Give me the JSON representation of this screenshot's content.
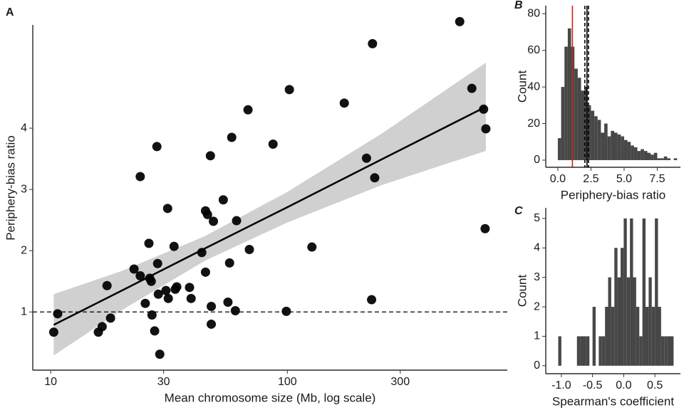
{
  "chart_data": [
    {
      "type": "scatter",
      "panel_label": "A",
      "xlabel": "Mean chromosome size (Mb, log scale)",
      "ylabel": "Periphery-bias ratio",
      "log_x": true,
      "xlim": [
        8.4,
        850
      ],
      "xticks": [
        10,
        30,
        100,
        300
      ],
      "ylim": [
        0.05,
        6.0
      ],
      "yticks": [
        1,
        2,
        3,
        4
      ],
      "color": "#000000",
      "hline": 1,
      "points": {
        "x": [
          10.3,
          10.7,
          15.9,
          16.5,
          17.3,
          17.9,
          22.5,
          23.9,
          23.9,
          25.1,
          26.0,
          26.2,
          26.6,
          26.8,
          27.5,
          28.1,
          28.3,
          28.5,
          28.9,
          30.7,
          31.2,
          31.4,
          33.2,
          33.6,
          34.1,
          38.6,
          39.2,
          43.5,
          45.1,
          45.1,
          46.0,
          47.7,
          47.3,
          47.7,
          48.7,
          53.6,
          56.1,
          57.0,
          58.2,
          60.3,
          61.0,
          68.2,
          69.1,
          87.0,
          99.0,
          102,
          127,
          174,
          216,
          227,
          229,
          234,
          535,
          602,
          675,
          690,
          685
        ],
        "y": [
          0.67,
          0.97,
          0.67,
          0.76,
          1.43,
          0.9,
          1.7,
          1.59,
          3.21,
          1.14,
          2.12,
          1.55,
          1.5,
          0.95,
          0.69,
          3.7,
          1.79,
          1.29,
          0.31,
          1.35,
          2.69,
          1.22,
          2.07,
          1.37,
          1.41,
          1.4,
          1.22,
          1.97,
          1.65,
          2.65,
          2.59,
          1.09,
          3.55,
          0.8,
          2.48,
          2.83,
          1.16,
          1.8,
          3.85,
          1.02,
          2.49,
          4.3,
          2.02,
          3.74,
          1.01,
          4.63,
          2.06,
          4.41,
          3.51,
          1.2,
          5.38,
          3.19,
          5.74,
          4.65,
          4.31,
          3.99,
          2.36
        ]
      },
      "fit": {
        "x": [
          10.3,
          20,
          45,
          100,
          250,
          690
        ],
        "y": [
          0.79,
          1.35,
          2.04,
          2.71,
          3.49,
          4.35
        ],
        "lower": [
          0.29,
          1.03,
          1.84,
          2.46,
          3.07,
          3.63
        ],
        "upper": [
          1.29,
          1.67,
          2.24,
          2.96,
          3.91,
          5.07
        ],
        "band_color": "#d0d0d0"
      }
    },
    {
      "type": "histogram",
      "panel_label": "B",
      "xlabel": "Periphery-bias ratio",
      "ylabel": "Count",
      "xlim": [
        -0.91,
        9.25
      ],
      "xticks": [
        {
          "value": 0,
          "label": "0.0"
        },
        2.5,
        {
          "value": 5,
          "label": "5.0"
        },
        7.5
      ],
      "ylim": [
        -3.9,
        84.4
      ],
      "yticks": [
        0,
        20,
        40,
        60,
        80
      ],
      "color": "#474747",
      "bins": [
        0,
        0.25,
        0.5,
        0.75,
        1,
        1.25,
        1.5,
        1.75,
        2,
        2.25,
        2.5,
        2.75,
        3,
        3.25,
        3.5,
        3.75,
        4,
        4.25,
        4.5,
        4.75,
        5,
        5.25,
        5.5,
        5.75,
        6,
        6.25,
        6.5,
        6.75,
        7,
        7.25,
        7.5,
        7.75,
        8,
        8.25,
        8.5,
        8.75,
        9
      ],
      "values": [
        12,
        40,
        62,
        72,
        62,
        50,
        45,
        38,
        40,
        30,
        27,
        24,
        22,
        15,
        20,
        13,
        16,
        15,
        14,
        13,
        11,
        10,
        8,
        7,
        5,
        6,
        5,
        4,
        3,
        4,
        1,
        1,
        2,
        1,
        0,
        1
      ],
      "vlines": [
        {
          "value": 1.1,
          "color": "#cc2222",
          "style": "solid"
        },
        {
          "value": 2.04,
          "color": "#000000",
          "style": "dashed"
        },
        {
          "value": 2.2,
          "color": "#000000",
          "style": "solid"
        },
        {
          "value": 2.31,
          "color": "#000000",
          "style": "dashed"
        }
      ]
    },
    {
      "type": "histogram",
      "panel_label": "C",
      "xlabel": "Spearman's coefficient",
      "ylabel": "Count",
      "xlim": [
        -1.25,
        0.91
      ],
      "xticks": [
        {
          "value": -1,
          "label": "-1.0"
        },
        -0.5,
        {
          "value": 0,
          "label": "0.0"
        },
        0.5
      ],
      "ylim": [
        -0.27,
        5.36
      ],
      "yticks": [
        0,
        1,
        2,
        3,
        4,
        5
      ],
      "color": "#474747",
      "bins": [
        -1.05,
        -1.0,
        -0.95,
        -0.9,
        -0.85,
        -0.8,
        -0.75,
        -0.7,
        -0.65,
        -0.6,
        -0.55,
        -0.5,
        -0.45,
        -0.4,
        -0.35,
        -0.3,
        -0.25,
        -0.2,
        -0.15,
        -0.1,
        -0.05,
        0,
        0.05,
        0.1,
        0.15,
        0.2,
        0.25,
        0.3,
        0.35,
        0.4,
        0.45,
        0.5,
        0.55,
        0.6,
        0.65,
        0.7,
        0.75,
        0.8
      ],
      "values": [
        1,
        0,
        0,
        0,
        0,
        0,
        1,
        1,
        1,
        1,
        0,
        2,
        0,
        1,
        1,
        2,
        3,
        2,
        4,
        3,
        4,
        5,
        3,
        5,
        3,
        2,
        1,
        5,
        2,
        3,
        2,
        5,
        2,
        1,
        1,
        1,
        1
      ]
    }
  ]
}
